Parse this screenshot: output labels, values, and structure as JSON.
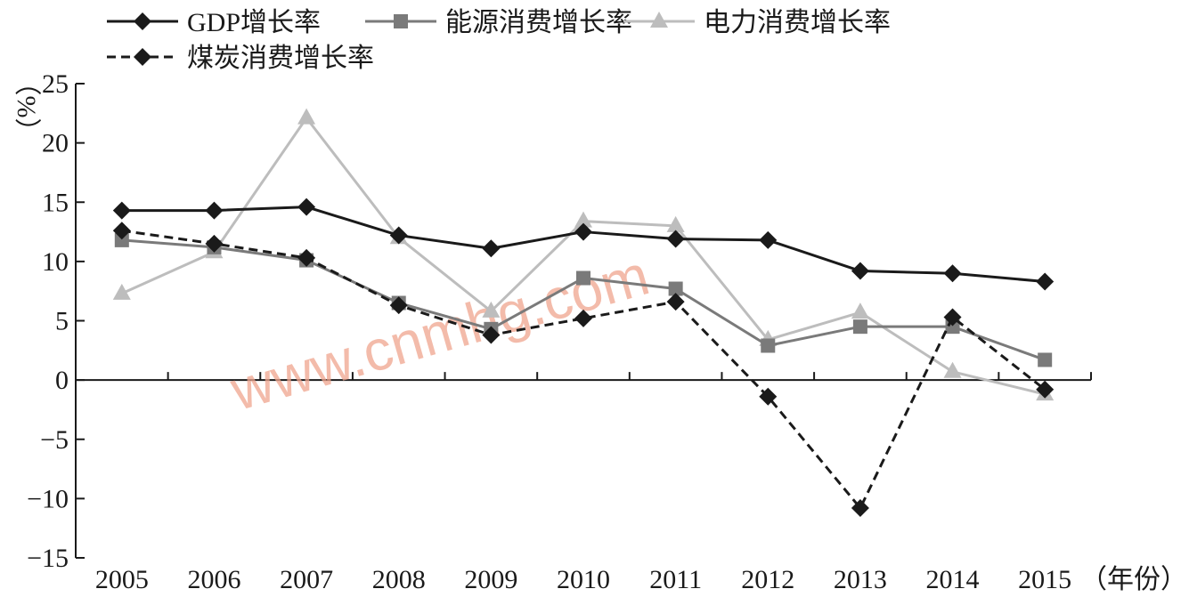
{
  "chart_data": {
    "type": "line",
    "x": [
      "2005",
      "2006",
      "2007",
      "2008",
      "2009",
      "2010",
      "2011",
      "2012",
      "2013",
      "2014",
      "2015"
    ],
    "xlabel": "（年份）",
    "ylabel": "（%）",
    "ylim": [
      -15,
      25
    ],
    "yticks": [
      "25",
      "20",
      "15",
      "10",
      "5",
      "0",
      "−5",
      "−10",
      "−15"
    ],
    "ytick_values": [
      25,
      20,
      15,
      10,
      5,
      0,
      -5,
      -10,
      -15
    ],
    "grid": false,
    "legend_position": "top-left",
    "series": [
      {
        "name": "GDP增长率",
        "values": [
          14.3,
          14.3,
          14.6,
          12.2,
          11.1,
          12.5,
          11.9,
          11.8,
          9.2,
          9.0,
          8.3
        ],
        "color": "#1a1a1a",
        "marker": "diamond",
        "dash": "solid"
      },
      {
        "name": "能源消费增长率",
        "values": [
          11.8,
          11.2,
          10.1,
          6.5,
          4.3,
          8.6,
          7.7,
          2.9,
          4.5,
          4.5,
          1.7
        ],
        "color": "#7a7a7a",
        "marker": "square",
        "dash": "solid"
      },
      {
        "name": "电力消费增长率",
        "values": [
          7.3,
          10.8,
          22.1,
          12.0,
          5.8,
          13.4,
          13.0,
          3.4,
          5.7,
          0.7,
          -1.2
        ],
        "color": "#bdbdbd",
        "marker": "triangle",
        "dash": "solid"
      },
      {
        "name": "煤炭消费增长率",
        "values": [
          12.6,
          11.5,
          10.3,
          6.3,
          3.8,
          5.2,
          6.6,
          -1.4,
          -10.8,
          5.3,
          -0.8
        ],
        "color": "#1a1a1a",
        "marker": "diamond",
        "dash": "dashed"
      }
    ]
  },
  "watermark": "www.cnmhg.com"
}
